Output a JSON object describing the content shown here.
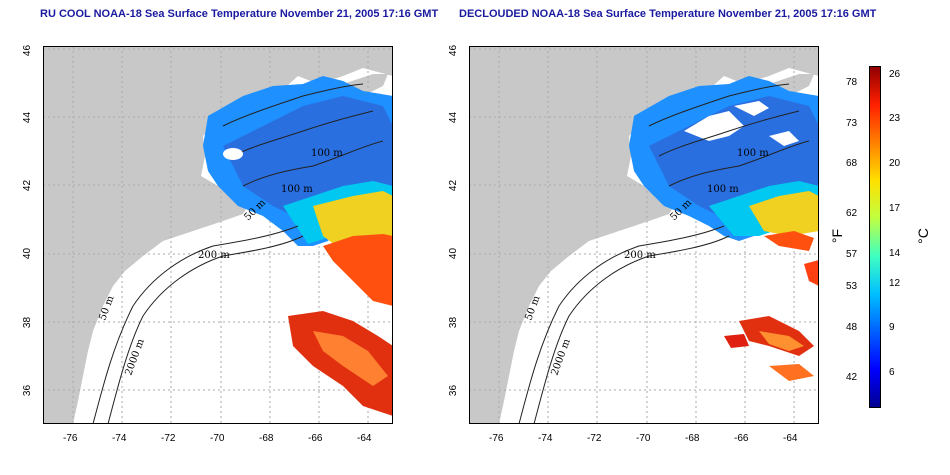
{
  "left_map": {
    "title": "RU COOL NOAA-18 Sea Surface Temperature November 21, 2005 17:16 GMT"
  },
  "right_map": {
    "title": "DECLOUDED NOAA-18 Sea Surface Temperature November 21, 2005 17:16 GMT"
  },
  "axes": {
    "x_ticks": [
      "-76",
      "-74",
      "-72",
      "-70",
      "-68",
      "-66",
      "-64"
    ],
    "y_ticks": [
      "46",
      "44",
      "42",
      "40",
      "38",
      "36"
    ]
  },
  "contour_labels": [
    "100 m",
    "100 m",
    "50 m",
    "200 m",
    "50 m",
    "2000 m"
  ],
  "colorbar": {
    "fahrenheit_ticks": [
      "78",
      "73",
      "68",
      "62",
      "57",
      "53",
      "48",
      "42"
    ],
    "celsius_ticks": [
      "26",
      "23",
      "20",
      "17",
      "14",
      "12",
      "9",
      "6"
    ],
    "fahrenheit_label": "°F",
    "celsius_label": "°C",
    "colors": [
      "#000090",
      "#0000ff",
      "#0060ff",
      "#00c0ff",
      "#40ffc0",
      "#c0ff40",
      "#ffe000",
      "#ff8000",
      "#ff2000",
      "#900000"
    ]
  },
  "colors": {
    "land": "#c8c8c8",
    "title": "#1a1aa0",
    "grid": "#aaaaaa"
  }
}
